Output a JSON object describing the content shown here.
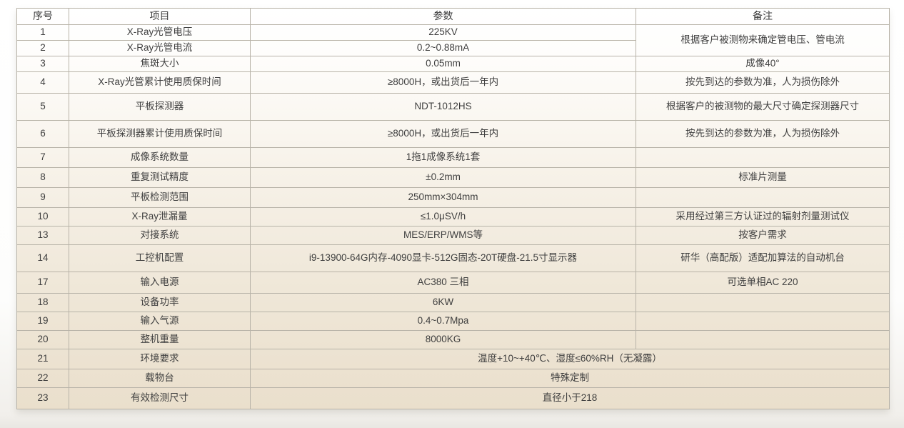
{
  "colors": {
    "table_border": "#b8b3a8",
    "text": "#3f3f3f",
    "background_top": "#ffffff",
    "background_bottom": "#eadfcc"
  },
  "table": {
    "headers": [
      "序号",
      "项目",
      "参数",
      "备注"
    ],
    "rows": [
      {
        "no": "1",
        "item": "X-Ray光管电压",
        "param": "225KV",
        "remark": "根据客户被测物来确定管电压、管电流",
        "remark_rowspan": 2
      },
      {
        "no": "2",
        "item": "X-Ray光管电流",
        "param": "0.2~0.88mA",
        "remark": null
      },
      {
        "no": "3",
        "item": "焦斑大小",
        "param": "0.05mm",
        "remark": "成像40°"
      },
      {
        "no": "4",
        "item": "X-Ray光管累计使用质保时间",
        "param": "≥8000H，或出货后一年内",
        "remark": "按先到达的参数为准，人为损伤除外"
      },
      {
        "no": "5",
        "item": "平板探测器",
        "param": "NDT-1012HS",
        "remark": "根据客户的被测物的最大尺寸确定探测器尺寸"
      },
      {
        "no": "6",
        "item": "平板探测器累计使用质保时间",
        "param": "≥8000H，或出货后一年内",
        "remark": "按先到达的参数为准，人为损伤除外"
      },
      {
        "no": "7",
        "item": "成像系统数量",
        "param": "1拖1成像系统1套",
        "remark": ""
      },
      {
        "no": "8",
        "item": "重复测试精度",
        "param": "±0.2mm",
        "remark": "标准片测量"
      },
      {
        "no": "9",
        "item": "平板检测范围",
        "param": "250mm×304mm",
        "remark": ""
      },
      {
        "no": "10",
        "item": "X-Ray泄漏量",
        "param": "≤1.0μSV/h",
        "remark": "采用经过第三方认证过的辐射剂量测试仪"
      },
      {
        "no": "13",
        "item": "对接系统",
        "param": "MES/ERP/WMS等",
        "remark": "按客户需求"
      },
      {
        "no": "14",
        "item": "工控机配置",
        "param": "i9-13900-64G内存-4090显卡-512G固态-20T硬盘-21.5寸显示器",
        "remark": "研华（高配版）适配加算法的自动机台"
      },
      {
        "no": "17",
        "item": "输入电源",
        "param": "AC380 三相",
        "remark": "可选单相AC 220"
      },
      {
        "no": "18",
        "item": "设备功率",
        "param": "6KW",
        "remark": ""
      },
      {
        "no": "19",
        "item": "输入气源",
        "param": "0.4~0.7Mpa",
        "remark": ""
      },
      {
        "no": "20",
        "item": "整机重量",
        "param": "8000KG",
        "remark": ""
      },
      {
        "no": "21",
        "item": "环境要求",
        "param": "温度+10~+40℃、湿度≤60%RH（无凝露）",
        "merged": true
      },
      {
        "no": "22",
        "item": "载物台",
        "param": "特殊定制",
        "merged": true
      },
      {
        "no": "23",
        "item": "有效检测尺寸",
        "param": "直径小于218",
        "merged": true
      }
    ]
  }
}
